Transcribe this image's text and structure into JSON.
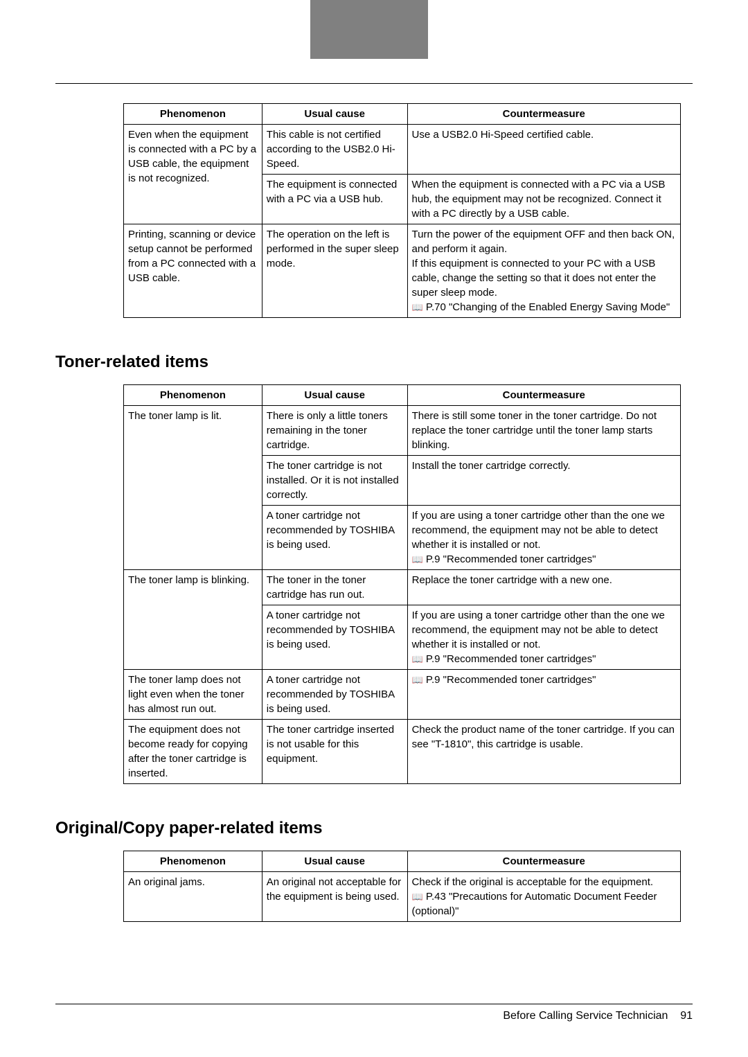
{
  "headers": {
    "phenomenon": "Phenomenon",
    "usual_cause": "Usual cause",
    "countermeasure": "Countermeasure"
  },
  "table1": {
    "rows": [
      {
        "p": "Even when the equipment is connected with a PC by a USB cable, the equipment is not recognized.",
        "p_rowspan": 2,
        "c": "This cable is not certified according to the USB2.0 Hi-Speed.",
        "m": "Use a USB2.0 Hi-Speed certified cable."
      },
      {
        "c": "The equipment is connected with a PC via a USB hub.",
        "m": "When the equipment is connected with a PC via a USB hub, the equipment may not be recognized. Connect it with a PC directly by a USB cable."
      },
      {
        "p": "Printing, scanning or device setup cannot be performed from a PC connected with a USB cable.",
        "c": "The operation on the left is performed in the super sleep mode.",
        "m": "Turn the power of the equipment OFF and then back ON, and perform it again.\nIf this equipment is connected to your PC with a USB cable, change the setting so that it does not enter the super sleep mode.\n📖 P.70 \"Changing of the Enabled Energy Saving Mode\""
      }
    ]
  },
  "section_toner": "Toner-related items",
  "table2": {
    "rows": [
      {
        "p": "The toner lamp is lit.",
        "p_rowspan": 3,
        "c": "There is only a little toners remaining in the toner cartridge.",
        "m": "There is still some toner in the toner cartridge. Do not replace the toner cartridge until the toner lamp starts blinking."
      },
      {
        "c": "The toner cartridge is not installed. Or it is not installed correctly.",
        "m": "Install the toner cartridge correctly."
      },
      {
        "c": "A toner cartridge not recommended by TOSHIBA is being used.",
        "m": "If you are using a toner cartridge other than the one we recommend, the equipment may not be able to detect whether it is installed or not.\n📖 P.9 \"Recommended toner cartridges\""
      },
      {
        "p": "The toner lamp is blinking.",
        "p_rowspan": 2,
        "c": "The toner in the toner cartridge has run out.",
        "m": "Replace the toner cartridge with a new one."
      },
      {
        "c": "A toner cartridge not recommended by TOSHIBA is being used.",
        "m": "If you are using a toner cartridge other than the one we recommend, the equipment may not be able to detect whether it is installed or not.\n📖 P.9 \"Recommended toner cartridges\""
      },
      {
        "p": "The toner lamp does not light even when the toner has almost run out.",
        "c": "A toner cartridge not recommended by TOSHIBA is being used.",
        "m": "📖 P.9 \"Recommended toner cartridges\""
      },
      {
        "p": "The equipment does not become ready for copying after the toner cartridge is inserted.",
        "c": "The toner cartridge inserted is not usable for this equipment.",
        "m": "Check the product name of the toner cartridge. If you can see \"T-1810\", this cartridge is usable."
      }
    ]
  },
  "section_original": "Original/Copy paper-related items",
  "table3": {
    "rows": [
      {
        "p": "An original jams.",
        "c": "An original not acceptable for the equipment is being used.",
        "m": "Check if the original is acceptable for the equipment.\n📖 P.43 \"Precautions for Automatic Document Feeder (optional)\""
      }
    ]
  },
  "footer": {
    "text": "Before Calling Service Technician",
    "page": "91"
  }
}
